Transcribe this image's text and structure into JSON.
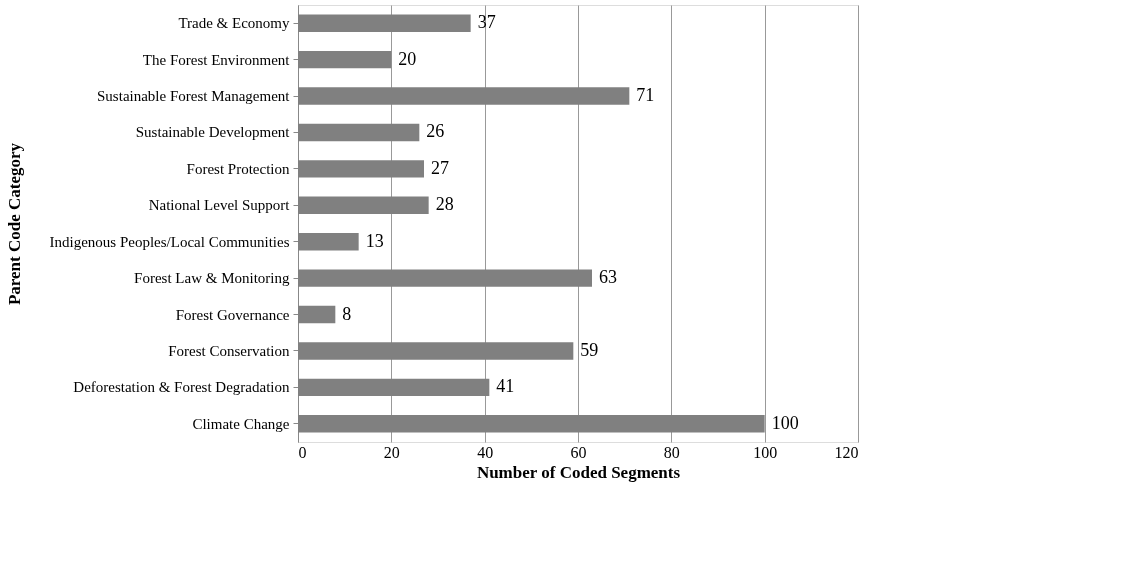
{
  "chart_data": {
    "type": "bar",
    "orientation": "horizontal",
    "categories": [
      "Trade & Economy",
      "The Forest Environment",
      "Sustainable Forest Management",
      "Sustainable Development",
      "Forest Protection",
      "National Level Support",
      "Indigenous Peoples/Local Communities",
      "Forest Law & Monitoring",
      "Forest Governance",
      "Forest Conservation",
      "Deforestation & Forest Degradation",
      "Climate Change"
    ],
    "values": [
      37,
      20,
      71,
      26,
      27,
      28,
      13,
      63,
      8,
      59,
      41,
      100
    ],
    "color": "#808080",
    "xlabel": "Number of Coded Segments",
    "ylabel": "Parent Code Category",
    "xlim": [
      0,
      120
    ],
    "xticks": [
      0,
      20,
      40,
      60,
      80,
      100,
      120
    ],
    "grid": "x",
    "data_labels": true
  }
}
